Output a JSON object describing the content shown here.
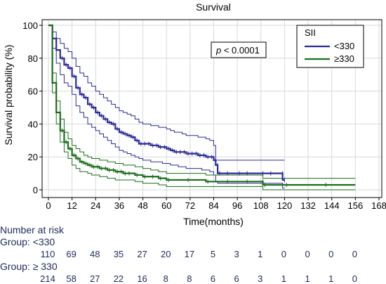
{
  "chart_data": {
    "type": "line",
    "title": "Survival",
    "xlabel": "Time(months)",
    "ylabel": "Survival probability (%)",
    "xlim": [
      0,
      168
    ],
    "ylim": [
      0,
      100
    ],
    "xticks": [
      "0",
      "12",
      "24",
      "36",
      "48",
      "60",
      "72",
      "84",
      "96",
      "108",
      "120",
      "132",
      "144",
      "156",
      "168"
    ],
    "yticks": [
      "0",
      "20",
      "40",
      "60",
      "80",
      "100"
    ],
    "annotation": {
      "p_italic": "p",
      "rest": " < 0.0001"
    },
    "legend": {
      "title": "SII",
      "position": "top-right",
      "entries": [
        "<330",
        "≥330"
      ]
    },
    "colors": {
      "group1": "#2b2b9a",
      "group2": "#1a6e1a"
    },
    "series": [
      {
        "name": "<330",
        "color": "#2b2b9a",
        "x": [
          0,
          2,
          4,
          6,
          8,
          10,
          12,
          14,
          16,
          18,
          20,
          22,
          24,
          26,
          28,
          30,
          32,
          34,
          36,
          38,
          40,
          42,
          44,
          46,
          48,
          50,
          52,
          54,
          56,
          58,
          60,
          62,
          64,
          66,
          68,
          70,
          72,
          74,
          76,
          78,
          80,
          82,
          84,
          85,
          86,
          90,
          96,
          100,
          108,
          112,
          118,
          119,
          120
        ],
        "y": [
          100,
          92,
          85,
          80,
          76,
          74,
          69,
          62,
          58,
          56,
          52,
          50,
          47,
          45,
          43,
          41,
          40,
          37,
          35,
          34,
          33,
          32,
          30,
          28,
          28,
          28,
          27,
          27,
          26,
          26,
          25,
          24,
          23,
          23,
          23,
          22,
          22,
          22,
          21,
          21,
          20,
          20,
          18,
          15,
          10,
          10,
          10,
          10,
          10,
          10,
          10,
          6,
          6
        ],
        "upper": [
          100,
          96,
          92,
          89,
          86,
          84,
          80,
          75,
          71,
          69,
          65,
          63,
          60,
          58,
          56,
          54,
          52,
          50,
          48,
          47,
          46,
          45,
          43,
          41,
          40,
          40,
          39,
          39,
          38,
          38,
          37,
          36,
          35,
          35,
          34,
          33,
          33,
          33,
          32,
          32,
          31,
          30,
          27,
          18,
          18,
          18,
          18,
          18,
          18,
          18,
          18,
          18,
          18
        ],
        "lower": [
          100,
          86,
          77,
          70,
          65,
          63,
          58,
          51,
          47,
          44,
          40,
          38,
          36,
          34,
          32,
          30,
          28,
          26,
          24,
          23,
          22,
          21,
          20,
          19,
          18,
          18,
          17,
          17,
          17,
          16,
          16,
          15,
          15,
          14,
          14,
          13,
          13,
          13,
          13,
          12,
          12,
          11,
          9,
          5,
          4,
          4,
          4,
          4,
          4,
          4,
          4,
          1,
          1
        ]
      },
      {
        "name": "≥330",
        "color": "#1a6e1a",
        "x": [
          0,
          2,
          4,
          6,
          8,
          10,
          12,
          14,
          16,
          18,
          20,
          22,
          24,
          26,
          28,
          30,
          32,
          34,
          36,
          38,
          40,
          44,
          48,
          52,
          56,
          60,
          70,
          80,
          90,
          100,
          108,
          109,
          120,
          140,
          156
        ],
        "y": [
          100,
          65,
          47,
          36,
          29,
          25,
          21,
          19,
          17,
          16,
          15,
          14,
          14,
          13,
          13,
          12,
          12,
          11,
          11,
          10,
          10,
          9,
          8,
          8,
          7,
          6,
          6,
          5,
          5,
          5,
          5,
          3,
          3,
          3,
          3
        ],
        "upper": [
          100,
          71,
          54,
          43,
          35,
          31,
          27,
          25,
          23,
          21,
          20,
          19,
          19,
          18,
          18,
          17,
          17,
          16,
          16,
          15,
          15,
          14,
          13,
          12,
          11,
          10,
          10,
          9,
          9,
          9,
          9,
          7,
          7,
          7,
          7
        ],
        "lower": [
          100,
          59,
          40,
          29,
          23,
          19,
          15,
          13,
          11,
          11,
          10,
          9,
          9,
          8,
          8,
          7,
          7,
          6,
          6,
          6,
          6,
          5,
          4,
          4,
          3,
          2,
          2,
          2,
          2,
          2,
          2,
          0,
          0,
          0,
          0
        ]
      }
    ],
    "risk_table": {
      "header": "Number at risk",
      "groups": [
        {
          "label": "Group: <330",
          "values": [
            "110",
            "69",
            "48",
            "35",
            "27",
            "20",
            "17",
            "5",
            "3",
            "1",
            "0",
            "0",
            "0",
            "0"
          ]
        },
        {
          "label": "Group: ≥ 330",
          "values": [
            "214",
            "58",
            "27",
            "22",
            "16",
            "8",
            "8",
            "6",
            "6",
            "3",
            "1",
            "1",
            "1",
            "0"
          ]
        }
      ]
    }
  }
}
